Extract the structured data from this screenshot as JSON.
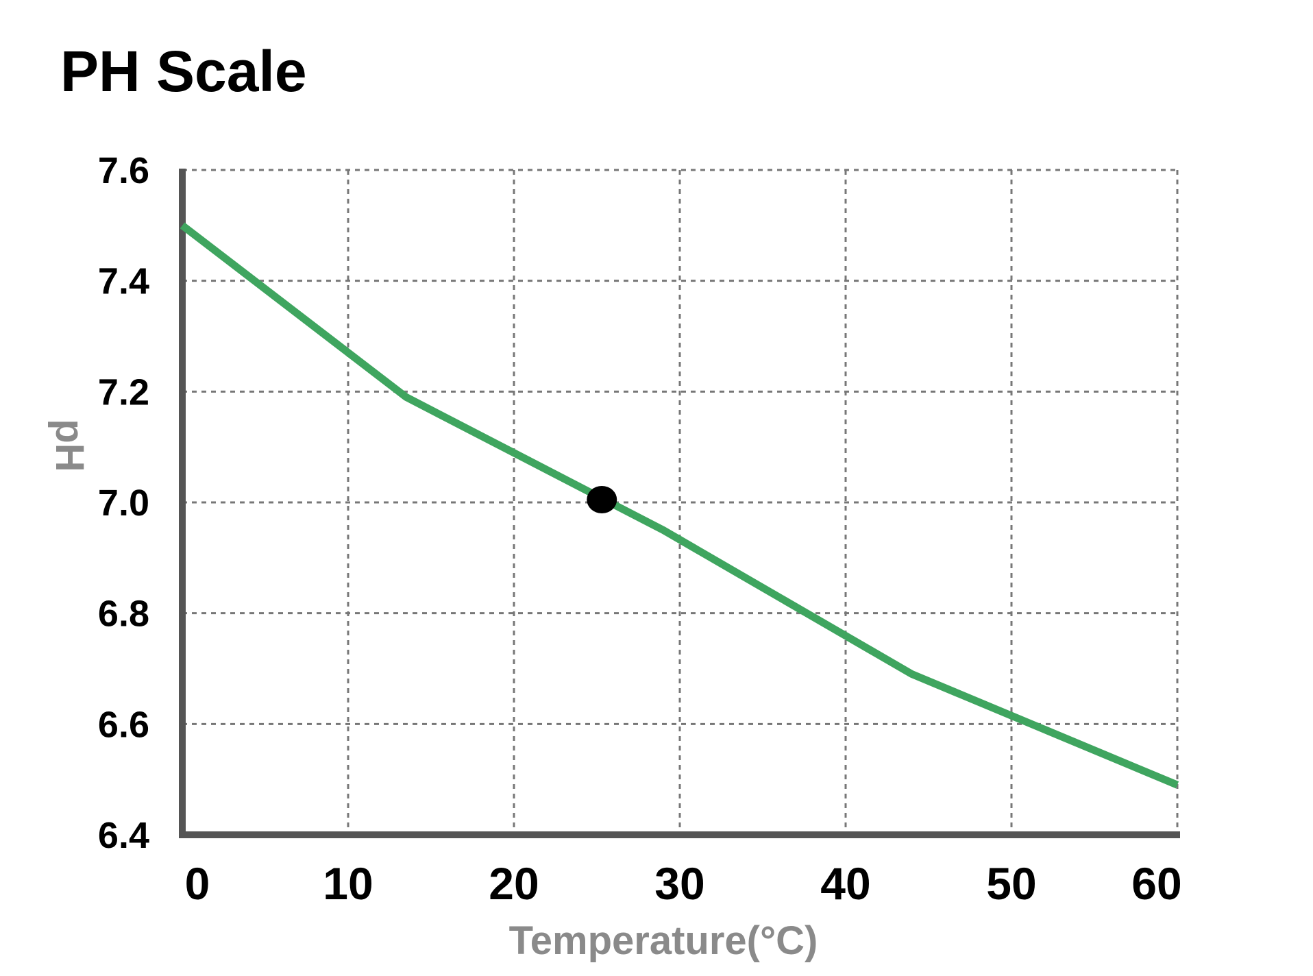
{
  "chart_data": {
    "type": "line",
    "title": "PH Scale",
    "xlabel": "Temperature(°C)",
    "ylabel": "pH",
    "xlim": [
      0,
      60
    ],
    "ylim": [
      6.4,
      7.6
    ],
    "x_ticks": [
      {
        "value": 0,
        "label": "0"
      },
      {
        "value": 10,
        "label": "10"
      },
      {
        "value": 20,
        "label": "20"
      },
      {
        "value": 30,
        "label": "30"
      },
      {
        "value": 40,
        "label": "40"
      },
      {
        "value": 50,
        "label": "50"
      },
      {
        "value": 60,
        "label": "60"
      }
    ],
    "y_ticks": [
      {
        "value": 6.4,
        "label": "6.4"
      },
      {
        "value": 6.6,
        "label": "6.6"
      },
      {
        "value": 6.8,
        "label": "6.8"
      },
      {
        "value": 7.0,
        "label": "7.0"
      },
      {
        "value": 7.2,
        "label": "7.2"
      },
      {
        "value": 7.4,
        "label": "7.4"
      },
      {
        "value": 7.6,
        "label": "7.6"
      }
    ],
    "grid": true,
    "series": [
      {
        "color": "#3fa55f",
        "points": [
          {
            "x": 0,
            "y": 7.5
          },
          {
            "x": 13.5,
            "y": 7.19
          },
          {
            "x": 29,
            "y": 6.95
          },
          {
            "x": 44,
            "y": 6.69
          },
          {
            "x": 60,
            "y": 6.49
          }
        ]
      }
    ],
    "marker": {
      "x": 25.3,
      "y": 7.0,
      "color": "#000000"
    }
  }
}
